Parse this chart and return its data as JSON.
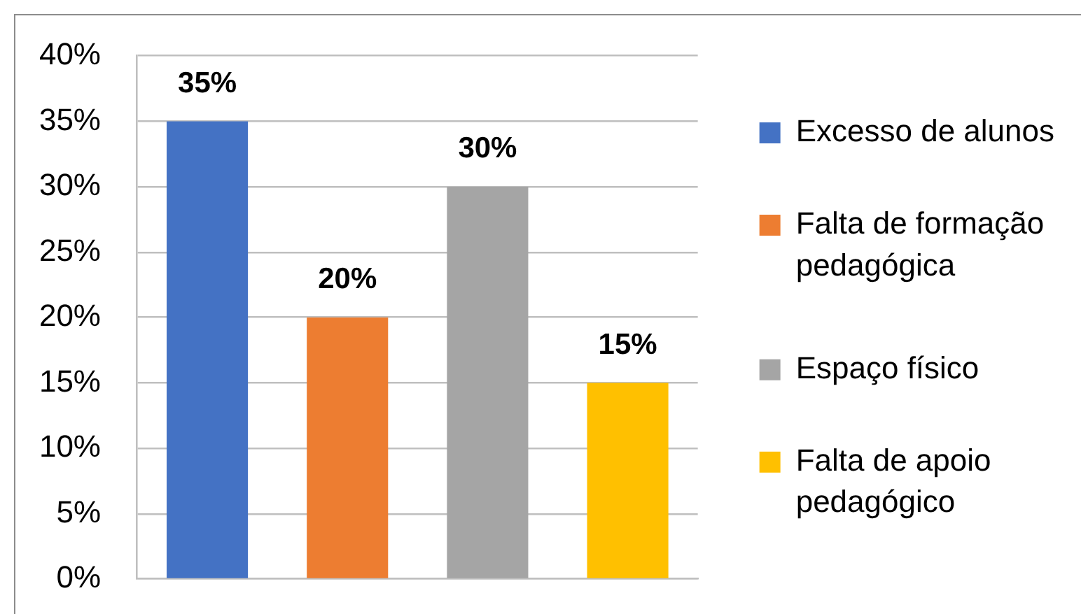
{
  "chart_data": {
    "type": "bar",
    "categories": [
      null
    ],
    "series": [
      {
        "name": "Excesso de alunos",
        "color": "#4472c4",
        "values": [
          35
        ],
        "value_labels": [
          "35%"
        ]
      },
      {
        "name": "Falta de formação pedagógica",
        "color": "#ed7d31",
        "values": [
          20
        ],
        "value_labels": [
          "20%"
        ]
      },
      {
        "name": "Espaço físico",
        "color": "#a5a5a5",
        "values": [
          30
        ],
        "value_labels": [
          "30%"
        ]
      },
      {
        "name": "Falta de apoio pedagógico",
        "color": "#ffc000",
        "values": [
          15
        ],
        "value_labels": [
          "15%"
        ]
      }
    ],
    "ylim": [
      0,
      40
    ],
    "yticks": [
      {
        "value": 0,
        "label": "0%"
      },
      {
        "value": 5,
        "label": "5%"
      },
      {
        "value": 10,
        "label": "10%"
      },
      {
        "value": 15,
        "label": "15%"
      },
      {
        "value": 20,
        "label": "20%"
      },
      {
        "value": 25,
        "label": "25%"
      },
      {
        "value": 30,
        "label": "30%"
      },
      {
        "value": 35,
        "label": "35%"
      },
      {
        "value": 40,
        "label": "40%"
      }
    ],
    "grid": "y",
    "legend": "right"
  }
}
